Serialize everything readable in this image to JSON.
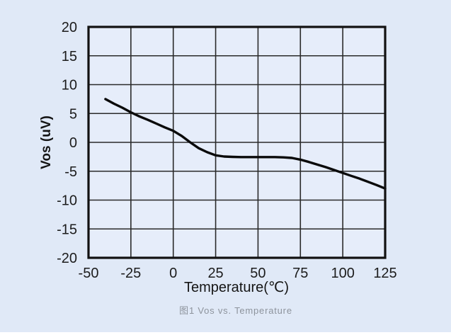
{
  "figure": {
    "caption": "图1 Vos vs. Temperature",
    "caption_color": "#8d939c"
  },
  "chart_data": {
    "type": "line",
    "title": "",
    "xlabel": "Temperature(℃)",
    "ylabel": "Vos (uV)",
    "xlim": [
      -50,
      125
    ],
    "ylim": [
      -20,
      20
    ],
    "x_ticks": [
      -50,
      -25,
      0,
      25,
      50,
      75,
      100,
      125
    ],
    "y_ticks": [
      20,
      15,
      10,
      5,
      0,
      -5,
      -10,
      -15,
      -20
    ],
    "grid": true,
    "legend": "none",
    "series": [
      {
        "name": "Vos",
        "color": "#0a0a0a",
        "x": [
          -40,
          -35,
          -30,
          -25,
          -20,
          -15,
          -10,
          -5,
          0,
          5,
          10,
          15,
          20,
          25,
          30,
          35,
          40,
          45,
          50,
          55,
          60,
          65,
          70,
          75,
          80,
          85,
          90,
          95,
          100,
          105,
          110,
          115,
          120,
          125
        ],
        "y": [
          7.5,
          6.7,
          6.0,
          5.2,
          4.5,
          3.9,
          3.25,
          2.6,
          2.0,
          1.1,
          0.0,
          -1.0,
          -1.7,
          -2.25,
          -2.45,
          -2.52,
          -2.55,
          -2.55,
          -2.55,
          -2.55,
          -2.55,
          -2.6,
          -2.7,
          -3.0,
          -3.4,
          -3.85,
          -4.3,
          -4.8,
          -5.3,
          -5.8,
          -6.3,
          -6.85,
          -7.4,
          -8.0
        ]
      }
    ],
    "styles": {
      "background": "#e0e9f7",
      "plot_background": "#e6edfa",
      "grid_color": "#2a2a2a",
      "border_color": "#111111",
      "text_color": "#1c1c1c"
    }
  }
}
